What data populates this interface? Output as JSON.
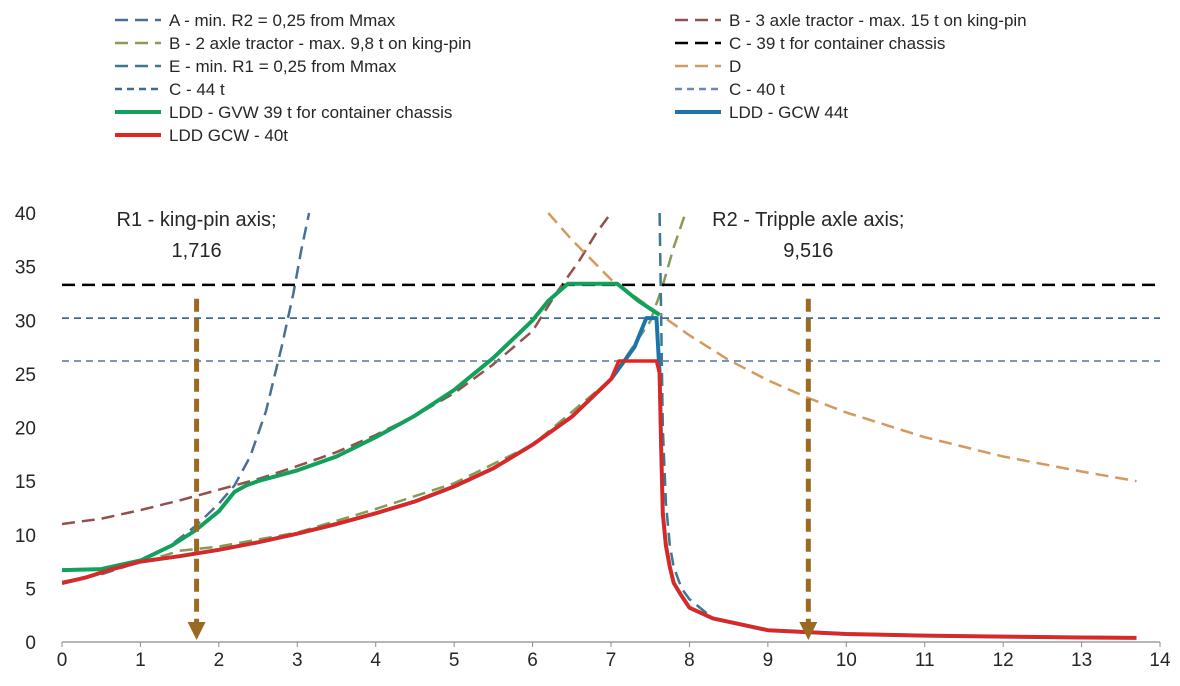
{
  "chart_data": {
    "type": "line",
    "xlim": [
      0,
      14
    ],
    "ylim": [
      0,
      40
    ],
    "x_ticks": [
      "0",
      "1",
      "2",
      "3",
      "4",
      "5",
      "6",
      "7",
      "8",
      "9",
      "10",
      "11",
      "12",
      "13",
      "14"
    ],
    "y_ticks": [
      "0",
      "5",
      "10",
      "15",
      "20",
      "25",
      "30",
      "35",
      "40"
    ],
    "grid": false,
    "legend_position": "top",
    "series": [
      {
        "name": "A - min. R2 = 0,25 from Mmax",
        "color": "#4a6f94",
        "style": "dashed",
        "width": 2.5,
        "x": [
          0,
          0.5,
          1.0,
          1.4,
          1.7,
          2.0,
          2.2,
          2.4,
          2.6,
          2.8,
          2.95,
          3.05,
          3.15
        ],
        "y": [
          5.6,
          6.3,
          7.5,
          9.1,
          10.8,
          12.9,
          14.6,
          17.3,
          21.5,
          27.5,
          32.5,
          36.5,
          40
        ]
      },
      {
        "name": "B - 3 axle tractor - max. 15 t on king-pin",
        "color": "#94504d",
        "style": "dashed",
        "width": 2.5,
        "x": [
          0,
          0.5,
          1,
          1.5,
          2,
          2.5,
          3,
          3.5,
          4,
          4.5,
          5,
          5.5,
          6,
          6.3,
          6.6,
          6.8,
          7.0
        ],
        "y": [
          11,
          11.5,
          12.3,
          13.2,
          14.2,
          15.2,
          16.4,
          17.7,
          19.3,
          21.1,
          23.2,
          25.9,
          29.0,
          32.5,
          35.6,
          38.0,
          40
        ]
      },
      {
        "name": "B - 2 axle tractor - max. 9,8 t on king-pin",
        "color": "#8a9a55",
        "style": "dashed",
        "width": 2.5,
        "x": [
          0,
          0.5,
          1.0,
          1.5,
          2,
          3,
          4,
          5,
          6,
          7,
          7.5,
          7.65,
          7.8,
          7.95
        ],
        "y": [
          6.7,
          6.8,
          7.4,
          8.5,
          8.9,
          10.2,
          12.4,
          14.8,
          18.4,
          24.5,
          29.9,
          33.0,
          36.8,
          40
        ]
      },
      {
        "name": "C - 39 t for container chassis",
        "color": "#000000",
        "style": "dashed",
        "width": 2.5,
        "x": [
          0,
          14
        ],
        "y": [
          33.3,
          33.3
        ]
      },
      {
        "name": "E - min. R1 = 0,25 from Mmax",
        "color": "#3a7990",
        "style": "dashed",
        "width": 2.5,
        "x": [
          7.62,
          7.64,
          7.66,
          7.7,
          7.75,
          7.8,
          7.9,
          8.0,
          8.3,
          9,
          10,
          11,
          12,
          13,
          13.7
        ],
        "y": [
          40,
          30,
          20,
          13,
          9,
          7,
          5,
          4,
          2.2,
          1.1,
          0.75,
          0.6,
          0.5,
          0.42,
          0.38
        ]
      },
      {
        "name": "D",
        "color": "#d4995e",
        "style": "dashed",
        "width": 2.5,
        "x": [
          6.2,
          6.5,
          7.0,
          7.5,
          8,
          8.5,
          9,
          9.5,
          10,
          11,
          12,
          13,
          13.7
        ],
        "y": [
          40,
          37.5,
          33.8,
          31.2,
          28.6,
          26.3,
          24.4,
          22.8,
          21.4,
          19.1,
          17.3,
          15.9,
          15.0
        ]
      },
      {
        "name": "C - 44 t",
        "color": "#3d6b94",
        "style": "dashed-short",
        "width": 1.8,
        "x": [
          0,
          14
        ],
        "y": [
          30.2,
          30.2
        ]
      },
      {
        "name": "C - 40 t",
        "color": "#6b88b2",
        "style": "dashed-short",
        "width": 1.8,
        "x": [
          0,
          14
        ],
        "y": [
          26.2,
          26.2
        ]
      },
      {
        "name": "LDD - GVW 39 t for container chassis",
        "color": "#12a05a",
        "style": "solid",
        "width": 4,
        "x": [
          0,
          0.5,
          1.0,
          1.4,
          1.7,
          2.0,
          2.2,
          2.35,
          2.5,
          3,
          3.5,
          4,
          4.5,
          5,
          5.5,
          6,
          6.2,
          6.45,
          7.08,
          7.35,
          7.62
        ],
        "y": [
          6.7,
          6.8,
          7.6,
          9.0,
          10.4,
          12.2,
          14.0,
          14.6,
          15.0,
          16.0,
          17.3,
          19.1,
          21.1,
          23.5,
          26.5,
          30.0,
          31.8,
          33.4,
          33.4,
          31.8,
          30.5
        ]
      },
      {
        "name": "LDD - GCW 44t",
        "color": "#1a76a8",
        "style": "solid",
        "width": 4,
        "x": [
          0,
          0.3,
          0.6,
          1.0,
          1.5,
          2,
          2.5,
          3,
          3.5,
          4,
          4.5,
          5,
          5.5,
          6,
          6.5,
          7,
          7.3,
          7.45,
          7.58,
          7.62,
          7.64,
          7.66,
          7.7,
          7.75,
          7.8,
          7.9,
          8.0,
          8.3,
          9,
          10,
          11,
          12,
          13,
          13.7
        ],
        "y": [
          5.5,
          6.0,
          6.7,
          7.5,
          8.0,
          8.6,
          9.3,
          10.1,
          11.0,
          12.0,
          13.1,
          14.5,
          16.2,
          18.4,
          21.0,
          24.5,
          27.5,
          30.2,
          30.2,
          25,
          18,
          12,
          9,
          7,
          5.5,
          4.3,
          3.2,
          2.2,
          1.1,
          0.75,
          0.6,
          0.5,
          0.42,
          0.38
        ]
      },
      {
        "name": "LDD GCW - 40t",
        "color": "#e8231e",
        "style": "solid",
        "width": 3.5,
        "x": [
          0,
          0.3,
          0.6,
          1.0,
          1.5,
          2,
          2.5,
          3,
          3.5,
          4,
          4.5,
          5,
          5.5,
          6,
          6.5,
          7,
          7.1,
          7.58,
          7.62,
          7.64,
          7.66,
          7.7,
          7.75,
          7.8,
          7.9,
          8.0,
          8.3,
          9,
          10,
          11,
          12,
          13,
          13.7
        ],
        "y": [
          5.5,
          6.0,
          6.7,
          7.5,
          8.0,
          8.6,
          9.3,
          10.1,
          11.0,
          12.0,
          13.1,
          14.5,
          16.2,
          18.4,
          21.0,
          24.5,
          26.2,
          26.2,
          25,
          18,
          12,
          9,
          7,
          5.5,
          4.3,
          3.2,
          2.2,
          1.1,
          0.75,
          0.6,
          0.5,
          0.42,
          0.38
        ]
      }
    ],
    "annotations": [
      {
        "line1": "R1 - king-pin axis;",
        "line2": "1,716",
        "x": 1.716,
        "arrow_from": 32,
        "arrow_to": 0,
        "color": "#9b6a22"
      },
      {
        "line1": "R2 - Tripple axle axis;",
        "line2": "9,516",
        "x": 9.516,
        "arrow_from": 32,
        "arrow_to": 0,
        "color": "#9b6a22"
      }
    ]
  }
}
